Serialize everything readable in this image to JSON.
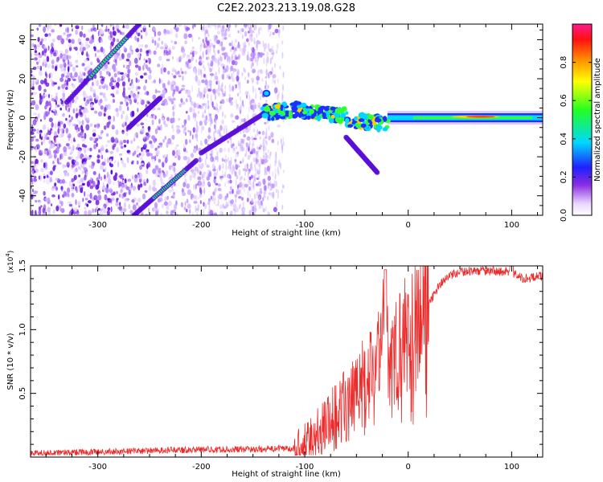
{
  "figure_title": "C2E2.2023.213.19.08.G28",
  "colors": {
    "snr_line": "#ee2b2b",
    "axis": "#000000",
    "background": "#ffffff"
  },
  "chart_data": [
    {
      "type": "heatmap",
      "title": "",
      "xlabel": "Height of straight line (km)",
      "ylabel": "Frequency (Hz)",
      "xlim": [
        -365,
        130
      ],
      "ylim": [
        -50,
        48
      ],
      "xticks": [
        -300,
        -200,
        -100,
        0,
        100
      ],
      "yticks": [
        -40,
        -20,
        0,
        20,
        40
      ],
      "grid": false,
      "description_of_data": "Normalized spectral amplitude versus frequency and height; bright ridge near 0 Hz from about -130 km to 130 km, two diagonal streaks at lower heights",
      "ridge_0hz": {
        "x_start": -140,
        "x_end": 130,
        "peak_amplitude": 0.9
      },
      "diagonal_streaks": [
        {
          "x": [
            -330,
            -260
          ],
          "y": [
            8,
            48
          ]
        },
        {
          "x": [
            -270,
            -240
          ],
          "y": [
            -5,
            10
          ]
        },
        {
          "x": [
            -265,
            -205
          ],
          "y": [
            -50,
            -22
          ]
        },
        {
          "x": [
            -200,
            -140
          ],
          "y": [
            -18,
            2
          ]
        },
        {
          "x": [
            -60,
            -30
          ],
          "y": [
            -10,
            -28
          ]
        }
      ],
      "colorbar": {
        "label": "Normalized spectral amplitude",
        "range": [
          0.0,
          1.0
        ],
        "ticks": [
          0.0,
          0.2,
          0.4,
          0.6,
          0.8
        ],
        "tick_labels": [
          "0.0",
          "0.2",
          "0.4",
          "0.6",
          "0.8"
        ]
      }
    },
    {
      "type": "line",
      "title": "",
      "xlabel": "Height of straight line (km)",
      "ylabel": "SNR (10 * v/v)",
      "multiplier_label": "(x10",
      "multiplier_exponent": "4",
      "multiplier_close": ")",
      "xlim": [
        -365,
        130
      ],
      "ylim": [
        0,
        15000
      ],
      "xticks": [
        -300,
        -200,
        -100,
        0,
        100
      ],
      "yticks": [
        5000,
        10000,
        15000
      ],
      "ytick_labels": [
        "0.5",
        "1.0",
        "1.5"
      ],
      "grid": false,
      "series": [
        {
          "name": "SNR",
          "x": [
            -365,
            -300,
            -250,
            -200,
            -150,
            -110,
            -95,
            -80,
            -70,
            -60,
            -50,
            -40,
            -30,
            -22,
            -18,
            -10,
            0,
            10,
            20,
            30,
            40,
            50,
            60,
            80,
            100,
            110,
            130
          ],
          "y": [
            300,
            400,
            500,
            600,
            600,
            700,
            1200,
            2500,
            3200,
            4000,
            5000,
            6500,
            7000,
            11000,
            6500,
            9000,
            10000,
            11000,
            12000,
            13500,
            14200,
            14500,
            14600,
            14600,
            14500,
            14000,
            14200
          ]
        }
      ]
    }
  ]
}
